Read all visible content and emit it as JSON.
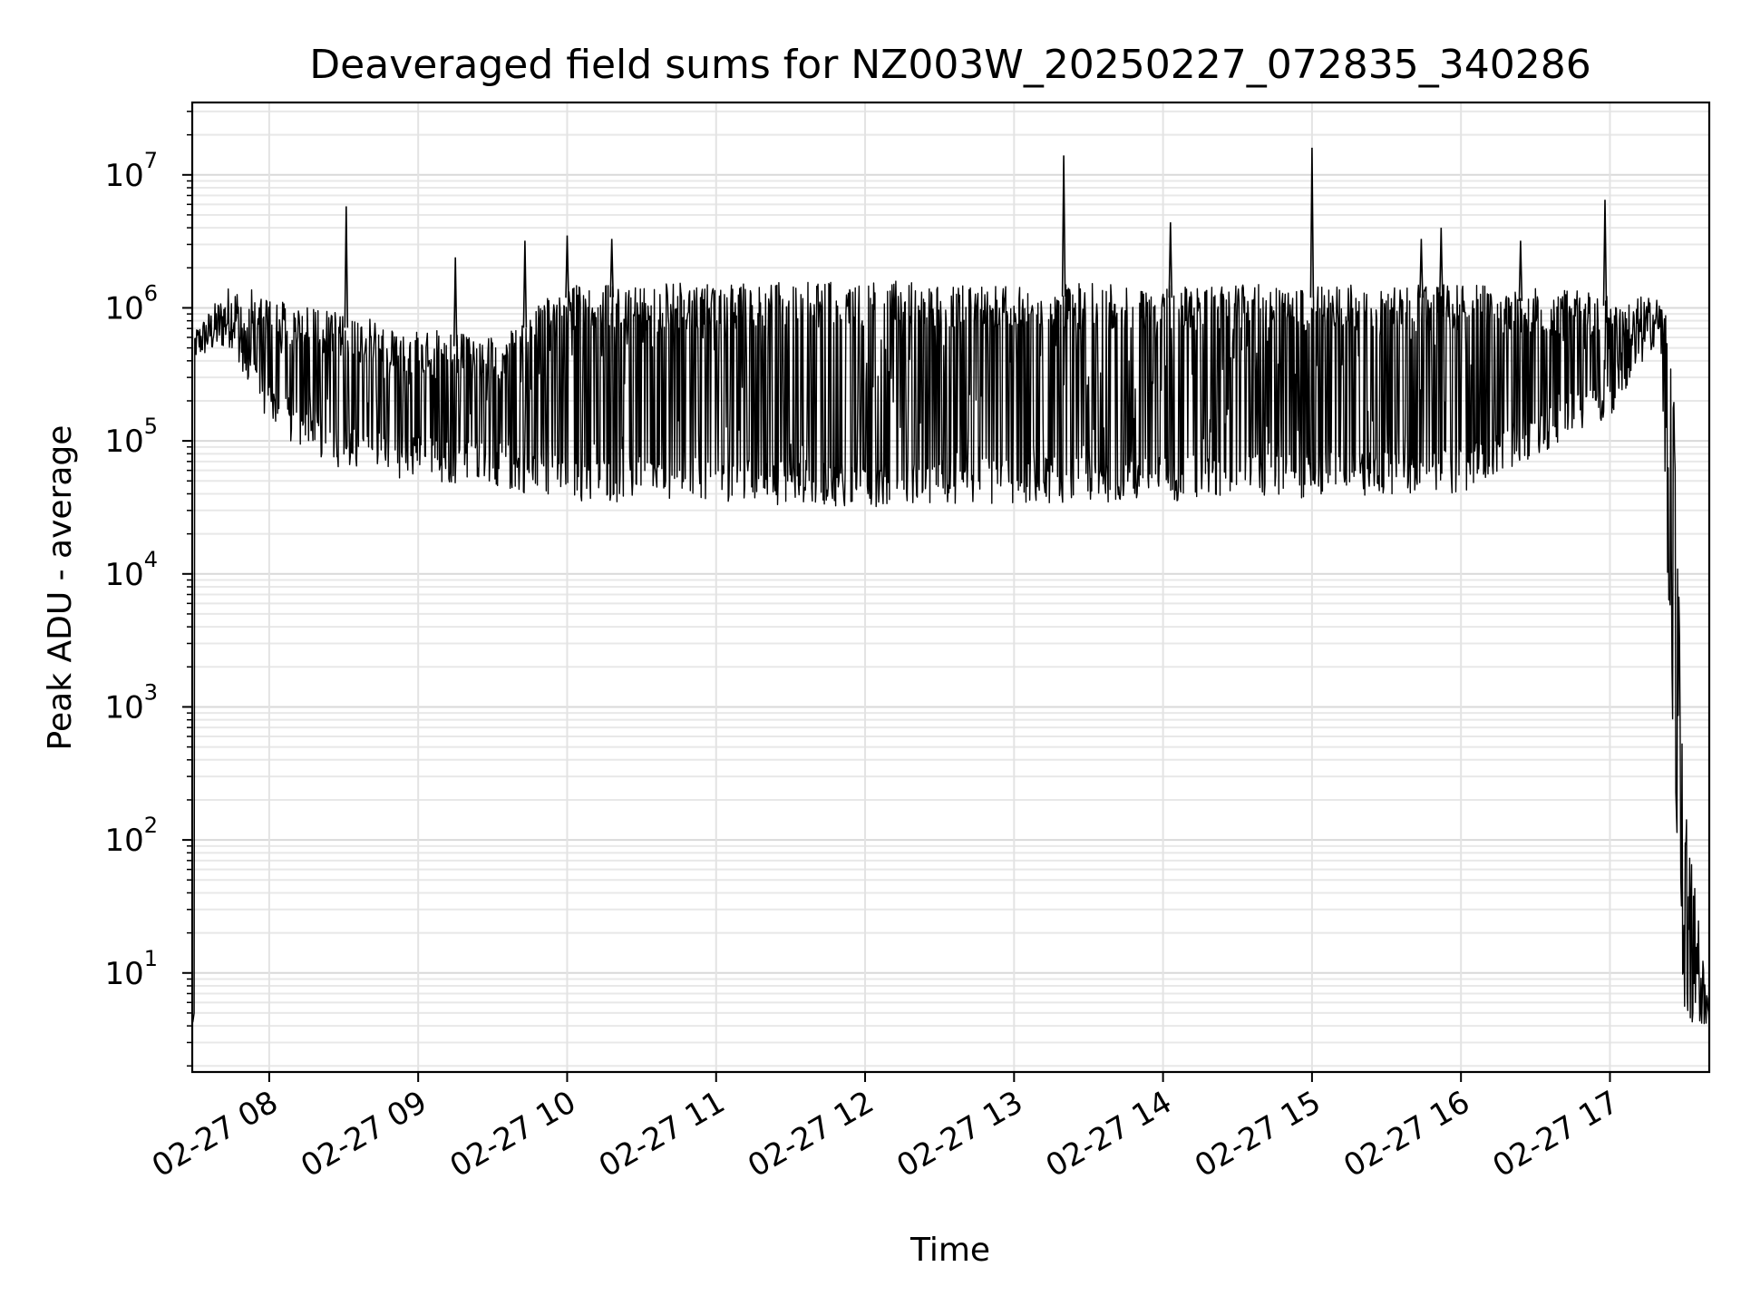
{
  "chart_data": {
    "type": "line",
    "title": "Deaveraged field sums for NZ003W_20250227_072835_340286",
    "xlabel": "Time",
    "ylabel": "Peak ADU - average",
    "yscale": "log",
    "xlim": [
      "02-27 07:29",
      "02-27 17:40"
    ],
    "ylim": [
      1.8,
      35000000
    ],
    "grid": true,
    "line_color": "#000000",
    "x_ticks": [
      "02-27 08",
      "02-27 09",
      "02-27 10",
      "02-27 11",
      "02-27 12",
      "02-27 13",
      "02-27 14",
      "02-27 15",
      "02-27 16",
      "02-27 17"
    ],
    "y_ticks": [
      {
        "base": "10",
        "exp": "1"
      },
      {
        "base": "10",
        "exp": "2"
      },
      {
        "base": "10",
        "exp": "3"
      },
      {
        "base": "10",
        "exp": "4"
      },
      {
        "base": "10",
        "exp": "5"
      },
      {
        "base": "10",
        "exp": "6"
      },
      {
        "base": "10",
        "exp": "7"
      }
    ],
    "series_profile": [
      {
        "time": "07:30",
        "low": 400000,
        "high": 700000
      },
      {
        "time": "07:45",
        "low": 500000,
        "high": 1600000
      },
      {
        "time": "08:00",
        "low": 120000,
        "high": 1200000
      },
      {
        "time": "08:30",
        "low": 60000,
        "high": 900000
      },
      {
        "time": "09:00",
        "low": 50000,
        "high": 700000
      },
      {
        "time": "09:30",
        "low": 45000,
        "high": 600000
      },
      {
        "time": "10:00",
        "low": 35000,
        "high": 1500000
      },
      {
        "time": "12:00",
        "low": 32000,
        "high": 1600000
      },
      {
        "time": "14:00",
        "low": 35000,
        "high": 1500000
      },
      {
        "time": "16:00",
        "low": 40000,
        "high": 1500000
      },
      {
        "time": "17:00",
        "low": 150000,
        "high": 1300000
      },
      {
        "time": "17:20",
        "low": 600000,
        "high": 1200000
      },
      {
        "time": "17:25",
        "low": 1000,
        "high": 700000
      },
      {
        "time": "17:30",
        "low": 4,
        "high": 200
      },
      {
        "time": "17:40",
        "low": 4,
        "high": 5
      }
    ],
    "spikes": [
      {
        "time": "08:31",
        "value": 5800000
      },
      {
        "time": "09:15",
        "value": 2400000
      },
      {
        "time": "09:43",
        "value": 3200000
      },
      {
        "time": "10:00",
        "value": 3500000
      },
      {
        "time": "10:18",
        "value": 3300000
      },
      {
        "time": "13:20",
        "value": 14000000
      },
      {
        "time": "14:03",
        "value": 4400000
      },
      {
        "time": "15:00",
        "value": 16000000
      },
      {
        "time": "15:44",
        "value": 3300000
      },
      {
        "time": "15:52",
        "value": 4000000
      },
      {
        "time": "16:24",
        "value": 3200000
      },
      {
        "time": "16:58",
        "value": 6500000
      }
    ]
  }
}
